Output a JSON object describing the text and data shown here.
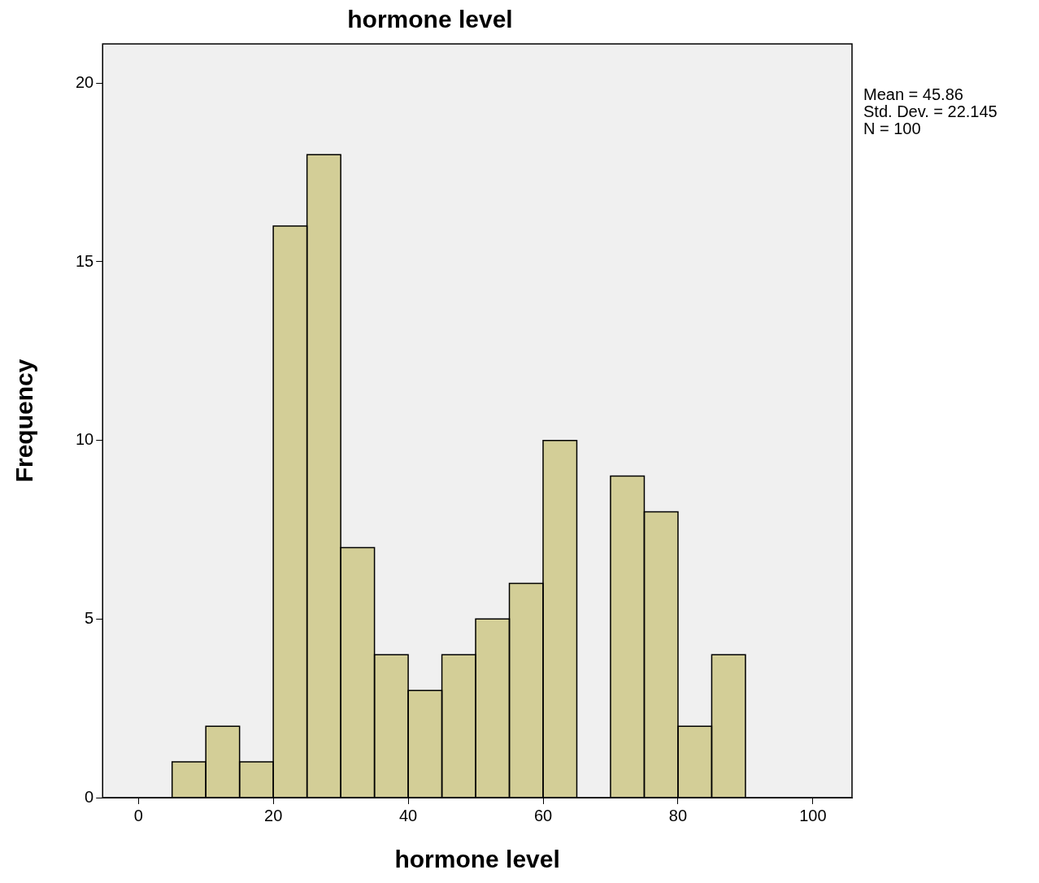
{
  "chart_data": {
    "type": "histogram",
    "title": "hormone level",
    "xlabel": "hormone level",
    "ylabel": "Frequency",
    "bins": [
      5,
      10,
      15,
      20,
      25,
      30,
      35,
      40,
      45,
      50,
      55,
      60,
      65,
      70,
      75,
      80,
      85,
      90
    ],
    "values": [
      1,
      2,
      1,
      16,
      18,
      7,
      4,
      3,
      4,
      5,
      6,
      10,
      0,
      9,
      8,
      2,
      4
    ],
    "color": "#d3ce97",
    "xlim": [
      -5.3,
      105.8
    ],
    "xticks": [
      0,
      20,
      40,
      60,
      80,
      100
    ],
    "ylim": [
      0,
      21.1
    ],
    "yticks": [
      0,
      5,
      10,
      15,
      20
    ],
    "grid": false,
    "legend": false,
    "annotations": [
      "Mean = 45.86",
      "Std. Dev. = 22.145",
      "N = 100"
    ]
  }
}
